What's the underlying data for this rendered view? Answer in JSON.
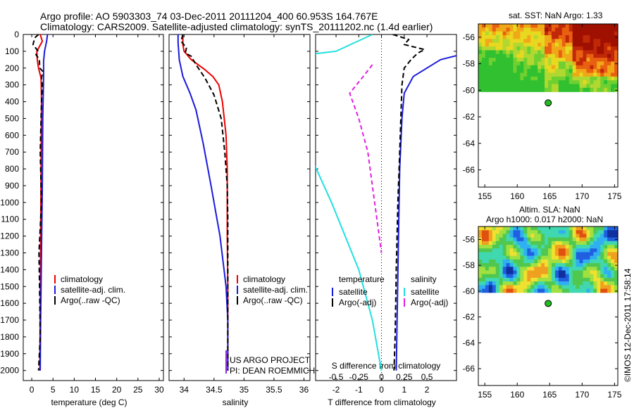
{
  "header": {
    "line1": "Argo profile: AO 5903303_74 03-Dec-2011 20111204_400 60.953S 164.767E",
    "line2": "Climatology: CARS2009. Satellite-adjusted climatology: synTS_20111202.nc (1.4d earlier)"
  },
  "colors": {
    "clim": "#ee0000",
    "sat": "#1a1adc",
    "argo": "#000000",
    "sat_s": "#22e0e0",
    "argo_s": "#e020e0"
  },
  "depth_ticks": [
    0,
    100,
    200,
    300,
    400,
    500,
    600,
    700,
    800,
    900,
    1000,
    1100,
    1200,
    1300,
    1400,
    1500,
    1600,
    1700,
    1800,
    1900,
    2000
  ],
  "stamp": "©IMOS 12-Dec-2011 17:58:14",
  "chart_data": [
    {
      "type": "line",
      "xlabel": "temperature (deg C)",
      "xlim": [
        -2,
        31
      ],
      "xticks": [
        0,
        5,
        10,
        15,
        20,
        25,
        30
      ],
      "ylim": [
        2060,
        0
      ],
      "legend": [
        "climatology",
        "satellite-adj. clim.",
        "Argo(..raw -QC)"
      ],
      "series": [
        {
          "name": "climatology",
          "style": "clim",
          "points": [
            [
              2.0,
              0
            ],
            [
              2.5,
              40
            ],
            [
              1.2,
              100
            ],
            [
              1.3,
              150
            ],
            [
              1.6,
              200
            ],
            [
              2.2,
              260
            ],
            [
              2.3,
              400
            ],
            [
              2.2,
              800
            ],
            [
              2.1,
              1200
            ],
            [
              2.0,
              1600
            ],
            [
              1.9,
              2000
            ]
          ]
        },
        {
          "name": "satellite-adj. clim.",
          "style": "sat",
          "points": [
            [
              3.7,
              0
            ],
            [
              3.5,
              40
            ],
            [
              3.0,
              100
            ],
            [
              2.8,
              160
            ],
            [
              2.8,
              250
            ],
            [
              2.6,
              500
            ],
            [
              2.5,
              900
            ],
            [
              2.3,
              1300
            ],
            [
              2.1,
              1700
            ],
            [
              2.0,
              2000
            ]
          ]
        },
        {
          "name": "Argo(..raw -QC)",
          "style": "argo",
          "points": [
            [
              1.6,
              0
            ],
            [
              0.7,
              20
            ],
            [
              0.3,
              60
            ],
            [
              1.5,
              100
            ],
            [
              1.0,
              120
            ],
            [
              1.8,
              150
            ],
            [
              1.9,
              200
            ],
            [
              2.6,
              220
            ],
            [
              2.3,
              260
            ],
            [
              2.5,
              300
            ],
            [
              2.3,
              400
            ],
            [
              2.0,
              700
            ],
            [
              2.3,
              1000
            ],
            [
              1.7,
              1300
            ],
            [
              1.9,
              1600
            ],
            [
              2.0,
              1800
            ],
            [
              1.6,
              2000
            ]
          ]
        }
      ]
    },
    {
      "type": "line",
      "xlabel": "salinity",
      "xlim": [
        33.75,
        36.1
      ],
      "xticks": [
        34,
        34.5,
        35,
        35.5,
        36
      ],
      "ylim": [
        2060,
        0
      ],
      "legend": [
        "climatology",
        "satellite-adj. clim.",
        "Argo(..raw -QC)"
      ],
      "annotation": [
        "US ARGO PROJECT",
        "PI: DEAN ROEMMICH"
      ],
      "series": [
        {
          "name": "climatology",
          "style": "clim",
          "points": [
            [
              33.98,
              0
            ],
            [
              33.98,
              60
            ],
            [
              34.0,
              100
            ],
            [
              34.12,
              150
            ],
            [
              34.35,
              210
            ],
            [
              34.48,
              250
            ],
            [
              34.58,
              300
            ],
            [
              34.64,
              400
            ],
            [
              34.7,
              600
            ],
            [
              34.72,
              800
            ],
            [
              34.72,
              1200
            ],
            [
              34.73,
              1500
            ],
            [
              34.73,
              2000
            ]
          ]
        },
        {
          "name": "satellite-adj. clim.",
          "style": "sat",
          "points": [
            [
              33.9,
              0
            ],
            [
              33.9,
              50
            ],
            [
              33.92,
              150
            ],
            [
              33.98,
              250
            ],
            [
              34.1,
              350
            ],
            [
              34.2,
              450
            ],
            [
              34.32,
              650
            ],
            [
              34.45,
              900
            ],
            [
              34.6,
              1200
            ],
            [
              34.7,
              1500
            ],
            [
              34.73,
              1700
            ],
            [
              34.73,
              2000
            ]
          ]
        },
        {
          "name": "Argo(..raw -QC)",
          "style": "argo",
          "points": [
            [
              33.98,
              0
            ],
            [
              33.95,
              40
            ],
            [
              34.04,
              80
            ],
            [
              34.02,
              110
            ],
            [
              34.12,
              130
            ],
            [
              34.2,
              180
            ],
            [
              34.35,
              260
            ],
            [
              34.5,
              360
            ],
            [
              34.62,
              500
            ],
            [
              34.68,
              700
            ],
            [
              34.72,
              900
            ],
            [
              34.73,
              1100
            ],
            [
              34.73,
              1500
            ],
            [
              34.73,
              2000
            ]
          ]
        }
      ]
    },
    {
      "type": "line",
      "xlabel": "T difference from climatology",
      "xlabel2": "S difference from climatology",
      "xlim": [
        -2.9,
        3.3
      ],
      "xticks": [
        -2,
        -1,
        0,
        1,
        2
      ],
      "xticks2": [
        -0.5,
        -0.25,
        0,
        0.25,
        0.5
      ],
      "ylim": [
        2060,
        0
      ],
      "legend_groups": [
        "temperature",
        "salinity"
      ],
      "legend": [
        "satellite",
        "Argo(-adj)",
        "satellite",
        "Argo(-adj)"
      ],
      "series": [
        {
          "name": "satellite",
          "group": "temperature",
          "style": "sat",
          "points": [
            [
              7,
              0
            ],
            [
              2.6,
              150
            ],
            [
              1.4,
              250
            ],
            [
              1.0,
              350
            ],
            [
              0.9,
              500
            ],
            [
              0.8,
              800
            ],
            [
              0.75,
              1200
            ],
            [
              0.7,
              1600
            ],
            [
              0.65,
              2000
            ]
          ]
        },
        {
          "name": "Argo(-adj)",
          "group": "temperature",
          "style": "argo",
          "points": [
            [
              0.5,
              0
            ],
            [
              1.2,
              30
            ],
            [
              1.0,
              60
            ],
            [
              1.9,
              90
            ],
            [
              1.6,
              110
            ],
            [
              1.3,
              150
            ],
            [
              1.0,
              200
            ],
            [
              0.9,
              300
            ],
            [
              0.85,
              500
            ],
            [
              0.8,
              700
            ],
            [
              0.72,
              1000
            ],
            [
              0.65,
              1400
            ],
            [
              0.6,
              1800
            ],
            [
              0.55,
              2000
            ]
          ]
        },
        {
          "name": "satellite",
          "group": "salinity",
          "style": "sat_s",
          "points": [
            [
              -0.1,
              0
            ],
            [
              -0.5,
              100
            ],
            [
              -1.8,
              180
            ],
            [
              -1.5,
              260
            ],
            [
              -1.3,
              350
            ],
            [
              -1.0,
              500
            ],
            [
              -0.8,
              700
            ],
            [
              -0.55,
              1000
            ],
            [
              -0.25,
              1400
            ],
            [
              -0.1,
              1700
            ],
            [
              0.0,
              2000
            ]
          ]
        },
        {
          "name": "Argo(-adj)",
          "group": "salinity",
          "style": "argo_s",
          "points": [
            [
              -0.1,
              180
            ],
            [
              -0.2,
              250
            ],
            [
              -0.35,
              350
            ],
            [
              -0.25,
              500
            ],
            [
              -0.15,
              700
            ],
            [
              -0.1,
              900
            ],
            [
              -0.05,
              1100
            ],
            [
              0.0,
              1300
            ]
          ]
        }
      ]
    }
  ],
  "maps": {
    "xticks": [
      155,
      160,
      165,
      170,
      175
    ],
    "yticks": [
      -56,
      -58,
      -60,
      -62,
      -64,
      -66
    ],
    "sst": {
      "title": "sat. SST: NaN Argo: 1.33"
    },
    "sla": {
      "title1": "Altim. SLA: NaN",
      "title2": "Argo h1000: 0.017 h2000: NaN"
    },
    "marker": {
      "lon": 164.77,
      "lat": -60.95
    }
  }
}
